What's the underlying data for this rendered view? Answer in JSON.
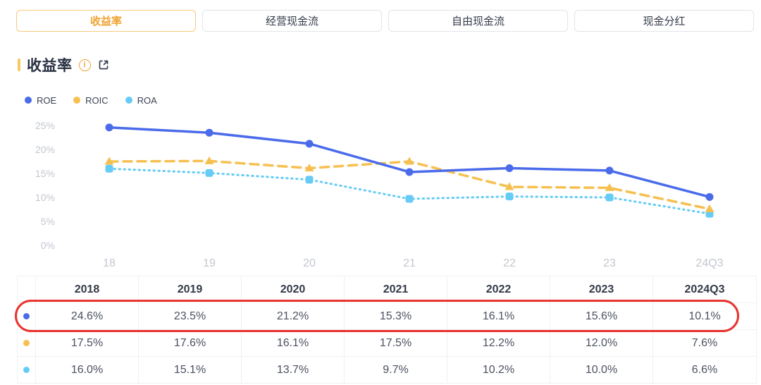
{
  "tabs": [
    {
      "label": "收益率",
      "active": true
    },
    {
      "label": "经营现金流",
      "active": false
    },
    {
      "label": "自由现金流",
      "active": false
    },
    {
      "label": "现金分红",
      "active": false
    }
  ],
  "section": {
    "title": "收益率"
  },
  "legend": [
    {
      "name": "ROE",
      "color": "#4a6bea"
    },
    {
      "name": "ROIC",
      "color": "#f6c051"
    },
    {
      "name": "ROA",
      "color": "#66ccf5"
    }
  ],
  "chart_data": {
    "type": "line",
    "title": "收益率",
    "categories": [
      "18",
      "19",
      "20",
      "21",
      "22",
      "23",
      "24Q3"
    ],
    "series": [
      {
        "name": "ROE",
        "color": "#4a6bea",
        "line_style": "solid",
        "marker": "circle",
        "values": [
          24.6,
          23.5,
          21.2,
          15.3,
          16.1,
          15.6,
          10.1
        ]
      },
      {
        "name": "ROIC",
        "color": "#f6c051",
        "line_style": "dashed",
        "marker": "triangle",
        "values": [
          17.5,
          17.6,
          16.1,
          17.5,
          12.2,
          12.0,
          7.6
        ]
      },
      {
        "name": "ROA",
        "color": "#66ccf5",
        "line_style": "dotted",
        "marker": "square",
        "values": [
          16.0,
          15.1,
          13.7,
          9.7,
          10.2,
          10.0,
          6.6
        ]
      }
    ],
    "ytick_labels": [
      "25%",
      "20%",
      "15%",
      "10%",
      "5%",
      "0%"
    ],
    "ytick_values": [
      25,
      20,
      15,
      10,
      5,
      0
    ],
    "ylim": [
      0,
      25
    ],
    "grid": false,
    "legend_position": "top-left",
    "unit": "%"
  },
  "table": {
    "headers": [
      "2018",
      "2019",
      "2020",
      "2021",
      "2022",
      "2023",
      "2024Q3"
    ],
    "rows": [
      {
        "series": "ROE",
        "dot_color": "#4a6bea",
        "highlighted": true,
        "values": [
          "24.6%",
          "23.5%",
          "21.2%",
          "15.3%",
          "16.1%",
          "15.6%",
          "10.1%"
        ]
      },
      {
        "series": "ROIC",
        "dot_color": "#f6c051",
        "highlighted": false,
        "values": [
          "17.5%",
          "17.6%",
          "16.1%",
          "17.5%",
          "12.2%",
          "12.0%",
          "7.6%"
        ]
      },
      {
        "series": "ROA",
        "dot_color": "#66ccf5",
        "highlighted": false,
        "values": [
          "16.0%",
          "15.1%",
          "13.7%",
          "9.7%",
          "10.2%",
          "10.0%",
          "6.6%"
        ]
      }
    ]
  },
  "annotation": {
    "type": "red-oval",
    "target": "ROE-row",
    "color": "#e8332e"
  },
  "theme": {
    "active_tab_text": "#f0a32f",
    "active_tab_border": "#f7ca7d",
    "accent_bar": "#f8c963",
    "axis_label": "#c3c7d0"
  }
}
